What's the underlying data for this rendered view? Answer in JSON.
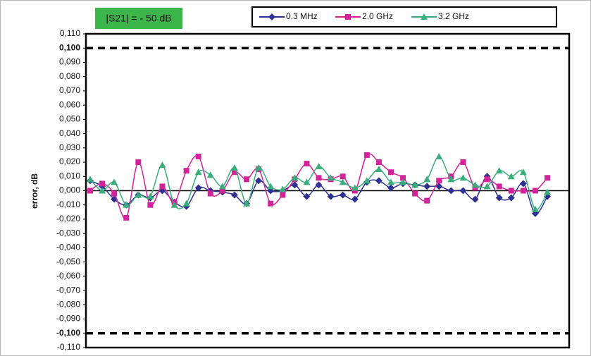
{
  "chart_data": {
    "type": "line",
    "annotation": "|S21| = - 50 dB",
    "y_label": "error, dB",
    "ylim": [
      -0.11,
      0.11
    ],
    "yticks": [
      {
        "value": 0.11,
        "label": "0,110"
      },
      {
        "value": 0.1,
        "label": "0,100"
      },
      {
        "value": 0.09,
        "label": "0,090"
      },
      {
        "value": 0.08,
        "label": "0,080"
      },
      {
        "value": 0.07,
        "label": "0,070"
      },
      {
        "value": 0.06,
        "label": "0,060"
      },
      {
        "value": 0.05,
        "label": "0,050"
      },
      {
        "value": 0.04,
        "label": "0,040"
      },
      {
        "value": 0.03,
        "label": "0,030"
      },
      {
        "value": 0.02,
        "label": "0,020"
      },
      {
        "value": 0.01,
        "label": "0,010"
      },
      {
        "value": 0,
        "label": "0,000"
      },
      {
        "value": -0.01,
        "label": "-0,010"
      },
      {
        "value": -0.02,
        "label": "-0,020"
      },
      {
        "value": -0.03,
        "label": "-0,030"
      },
      {
        "value": -0.04,
        "label": "-0,040"
      },
      {
        "value": -0.05,
        "label": "-0,050"
      },
      {
        "value": -0.06,
        "label": "-0,060"
      },
      {
        "value": -0.07,
        "label": "-0,070"
      },
      {
        "value": -0.08,
        "label": "-0,080"
      },
      {
        "value": -0.09,
        "label": "-0,090"
      },
      {
        "value": -0.1,
        "label": "-0,100"
      },
      {
        "value": -0.11,
        "label": "-0,110"
      }
    ],
    "reference_lines": [
      0.1,
      -0.1
    ],
    "series": [
      {
        "name": "0.3 MHz",
        "color": "#2e3192",
        "marker": "diamond",
        "values": [
          0.007,
          0.003,
          -0.006,
          -0.01,
          -0.003,
          -0.005,
          0.0,
          -0.008,
          -0.011,
          0.002,
          0.0,
          -0.001,
          -0.003,
          -0.009,
          0.007,
          0.0,
          0.0,
          0.004,
          -0.004,
          0.004,
          -0.004,
          -0.003,
          -0.006,
          0.006,
          0.007,
          0.002,
          0.005,
          0.004,
          0.003,
          0.003,
          0.0,
          0.0,
          -0.006,
          0.01,
          -0.005,
          -0.005,
          0.005,
          -0.016,
          -0.004
        ]
      },
      {
        "name": "2.0 GHz",
        "color": "#d4239a",
        "marker": "square",
        "values": [
          0.0,
          0.005,
          -0.002,
          -0.019,
          0.02,
          -0.01,
          0.003,
          -0.008,
          0.014,
          0.024,
          -0.002,
          0.0,
          0.013,
          0.008,
          0.015,
          -0.009,
          -0.003,
          0.008,
          0.019,
          0.009,
          0.008,
          0.01,
          0.0,
          0.025,
          0.02,
          0.013,
          0.009,
          -0.002,
          -0.007,
          0.007,
          0.01,
          0.02,
          0.002,
          0.008,
          0.003,
          0.0,
          0.0,
          0.0,
          0.009
        ]
      },
      {
        "name": "3.2 GHz",
        "color": "#3aad7c",
        "marker": "triangle",
        "values": [
          0.008,
          0.0,
          0.006,
          -0.01,
          -0.003,
          -0.004,
          0.018,
          -0.01,
          -0.009,
          0.013,
          0.011,
          0.003,
          0.016,
          -0.009,
          0.016,
          0.003,
          0.001,
          0.009,
          0.006,
          0.017,
          0.009,
          0.006,
          0.002,
          0.007,
          0.015,
          0.006,
          0.006,
          0.004,
          0.008,
          0.024,
          0.008,
          0.009,
          0.004,
          0.003,
          0.014,
          0.01,
          0.013,
          -0.013,
          -0.001
        ]
      }
    ]
  }
}
